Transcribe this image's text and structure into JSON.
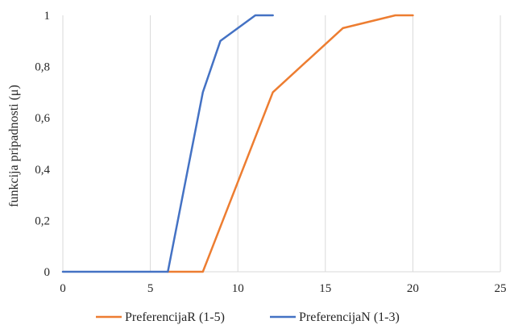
{
  "chart_data": {
    "type": "line",
    "title": "",
    "xlabel": "",
    "ylabel": "funkcija pripadnosti (μ)",
    "xlim": [
      0,
      25
    ],
    "ylim": [
      0,
      1
    ],
    "x_ticks": [
      0,
      5,
      10,
      15,
      20,
      25
    ],
    "y_ticks": [
      0,
      0.2,
      0.4,
      0.6,
      0.8,
      1
    ],
    "x_tick_labels": [
      "0",
      "5",
      "10",
      "15",
      "20",
      "25"
    ],
    "y_tick_labels": [
      "0",
      "0,2",
      "0,4",
      "0,6",
      "0,8",
      "1"
    ],
    "grid": "vertical",
    "legend_position": "bottom",
    "series": [
      {
        "name": "PreferencijaR (1-5)",
        "color": "#ED7D31",
        "points": [
          [
            6,
            0
          ],
          [
            8,
            0
          ],
          [
            12,
            0.7
          ],
          [
            16,
            0.95
          ],
          [
            19,
            1
          ],
          [
            20,
            1
          ]
        ]
      },
      {
        "name": "PreferencijaN (1-3)",
        "color": "#4472C4",
        "points": [
          [
            0,
            0
          ],
          [
            6,
            0
          ],
          [
            8,
            0.7
          ],
          [
            9,
            0.9
          ],
          [
            11,
            1
          ],
          [
            12,
            1
          ]
        ]
      }
    ]
  }
}
